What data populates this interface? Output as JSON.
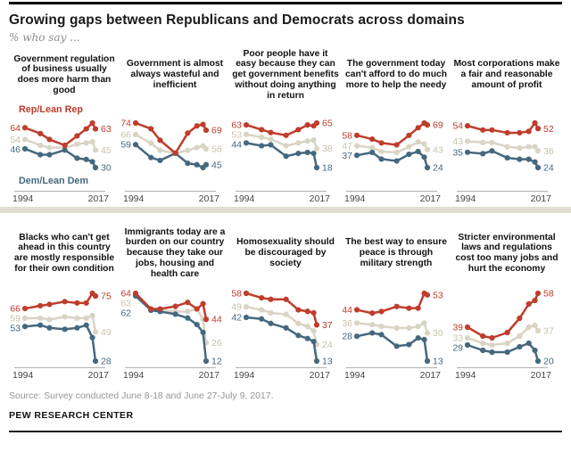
{
  "header": {
    "title": "Growing gaps between Republicans and Democrats across domains",
    "subtitle": "% who say ..."
  },
  "legend": {
    "rep": "Rep/Lean Rep",
    "dem": "Dem/Lean Dem"
  },
  "axis": {
    "start_label": "1994",
    "end_label": "2017"
  },
  "colors": {
    "rep": "#bf3d2c",
    "dem": "#45687e",
    "total": "#d9d4c4",
    "total_label": "#c8c2ae",
    "separator": "#e0ddd3"
  },
  "footer": {
    "source": "Source: Survey conducted June 8-18 and June 27-July 9, 2017.",
    "brand": "PEW RESEARCH CENTER"
  },
  "chart_data": {
    "type": "line",
    "x": [
      1994,
      1999,
      2002,
      2007,
      2011,
      2014,
      2016,
      2017
    ],
    "xlabel_start": "1994",
    "xlabel_end": "2017",
    "note": "Each panel shows % agreeing, for Rep/Lean Rep (red), Total (tan), Dem/Lean Dem (blue); start and end values are labeled",
    "charts": [
      {
        "title": "Government regulation of business usually does more harm than good",
        "row": 1,
        "series": [
          {
            "name": "Rep/Lean Rep",
            "color_key": "rep",
            "values": [
              64,
              59,
              54,
              49,
              57,
              63,
              68,
              63
            ]
          },
          {
            "name": "Total",
            "color_key": "total",
            "values": [
              54,
              49,
              47,
              47,
              50,
              51,
              52,
              45
            ]
          },
          {
            "name": "Dem/Lean Dem",
            "color_key": "dem",
            "values": [
              46,
              41,
              41,
              45,
              38,
              37,
              35,
              30
            ]
          }
        ]
      },
      {
        "title": "Government is almost always wasteful and inefficient",
        "row": 1,
        "series": [
          {
            "name": "Rep/Lean Rep",
            "color_key": "rep",
            "values": [
              74,
              70,
              62,
              53,
              67,
              72,
              73,
              69
            ]
          },
          {
            "name": "Total",
            "color_key": "total",
            "values": [
              66,
              60,
              55,
              53,
              55,
              57,
              58,
              56
            ]
          },
          {
            "name": "Dem/Lean Dem",
            "color_key": "dem",
            "values": [
              59,
              50,
              48,
              53,
              46,
              45,
              43,
              45
            ]
          }
        ]
      },
      {
        "title": "Poor people have it easy because they can get government benefits without doing anything in return",
        "row": 1,
        "series": [
          {
            "name": "Rep/Lean Rep",
            "color_key": "rep",
            "values": [
              63,
              58,
              55,
              52,
              58,
              63,
              62,
              65
            ]
          },
          {
            "name": "Total",
            "color_key": "total",
            "values": [
              53,
              50,
              48,
              41,
              44,
              46,
              47,
              38
            ]
          },
          {
            "name": "Dem/Lean Dem",
            "color_key": "dem",
            "values": [
              44,
              41,
              42,
              30,
              33,
              34,
              33,
              18
            ]
          }
        ]
      },
      {
        "title": "The government today can't afford to do much more to help the needy",
        "row": 1,
        "series": [
          {
            "name": "Rep/Lean Rep",
            "color_key": "rep",
            "values": [
              58,
              54,
              50,
              48,
              58,
              66,
              71,
              69
            ]
          },
          {
            "name": "Total",
            "color_key": "total",
            "values": [
              47,
              45,
              41,
              40,
              46,
              51,
              49,
              43
            ]
          },
          {
            "name": "Dem/Lean Dem",
            "color_key": "dem",
            "values": [
              37,
              40,
              33,
              31,
              38,
              41,
              35,
              24
            ]
          }
        ]
      },
      {
        "title": "Most corporations make a fair and reasonable amount of profit",
        "row": 1,
        "series": [
          {
            "name": "Rep/Lean Rep",
            "color_key": "rep",
            "values": [
              54,
              51,
              51,
              49,
              49,
              50,
              56,
              52
            ]
          },
          {
            "name": "Total",
            "color_key": "total",
            "values": [
              43,
              42,
              42,
              39,
              38,
              39,
              39,
              36
            ]
          },
          {
            "name": "Dem/Lean Dem",
            "color_key": "dem",
            "values": [
              35,
              34,
              36,
              31,
              30,
              30,
              28,
              24
            ]
          }
        ]
      },
      {
        "title": "Blacks who can't get ahead in this country are mostly responsible for their own condition",
        "row": 2,
        "series": [
          {
            "name": "Rep/Lean Rep",
            "color_key": "rep",
            "values": [
              66,
              68,
              69,
              71,
              70,
              70,
              77,
              75
            ]
          },
          {
            "name": "Total",
            "color_key": "total",
            "values": [
              59,
              59,
              58,
              60,
              59,
              59,
              61,
              49
            ]
          },
          {
            "name": "Dem/Lean Dem",
            "color_key": "dem",
            "values": [
              53,
              54,
              52,
              51,
              52,
              54,
              45,
              28
            ]
          }
        ]
      },
      {
        "title": "Immigrants today are a burden on our country because they take our jobs, housing and health care",
        "row": 2,
        "series": [
          {
            "name": "Rep/Lean Rep",
            "color_key": "rep",
            "values": [
              64,
              52,
              52,
              54,
              57,
              52,
              56,
              44
            ]
          },
          {
            "name": "Total",
            "color_key": "total",
            "values": [
              63,
              52,
              51,
              50,
              50,
              52,
              44,
              26
            ]
          },
          {
            "name": "Dem/Lean Dem",
            "color_key": "dem",
            "values": [
              62,
              51,
              50,
              48,
              45,
              40,
              34,
              12
            ]
          }
        ]
      },
      {
        "title": "Homosexuality should be discouraged by society",
        "row": 2,
        "series": [
          {
            "name": "Rep/Lean Rep",
            "color_key": "rep",
            "values": [
              58,
              55,
              54,
              54,
              47,
              46,
              45,
              37
            ]
          },
          {
            "name": "Total",
            "color_key": "total",
            "values": [
              49,
              47,
              45,
              44,
              38,
              36,
              33,
              24
            ]
          },
          {
            "name": "Dem/Lean Dem",
            "color_key": "dem",
            "values": [
              42,
              41,
              38,
              35,
              30,
              28,
              26,
              13
            ]
          }
        ]
      },
      {
        "title": "The best way to ensure peace is through military strength",
        "row": 2,
        "series": [
          {
            "name": "Rep/Lean Rep",
            "color_key": "rep",
            "values": [
              44,
              42,
              43,
              46,
              45,
              45,
              54,
              53
            ]
          },
          {
            "name": "Total",
            "color_key": "total",
            "values": [
              36,
              35,
              34,
              33,
              33,
              34,
              36,
              30
            ]
          },
          {
            "name": "Dem/Lean Dem",
            "color_key": "dem",
            "values": [
              28,
              30,
              29,
              22,
              23,
              27,
              26,
              13
            ]
          }
        ]
      },
      {
        "title": "Stricter environmental laws and regulations cost too many jobs and hurt the economy",
        "row": 2,
        "series": [
          {
            "name": "Rep/Lean Rep",
            "color_key": "rep",
            "values": [
              39,
              34,
              33,
              36,
              44,
              52,
              54,
              58
            ]
          },
          {
            "name": "Total",
            "color_key": "total",
            "values": [
              33,
              30,
              29,
              30,
              34,
              39,
              40,
              37
            ]
          },
          {
            "name": "Dem/Lean Dem",
            "color_key": "dem",
            "values": [
              29,
              26,
              25,
              25,
              28,
              30,
              26,
              20
            ]
          }
        ]
      }
    ]
  }
}
